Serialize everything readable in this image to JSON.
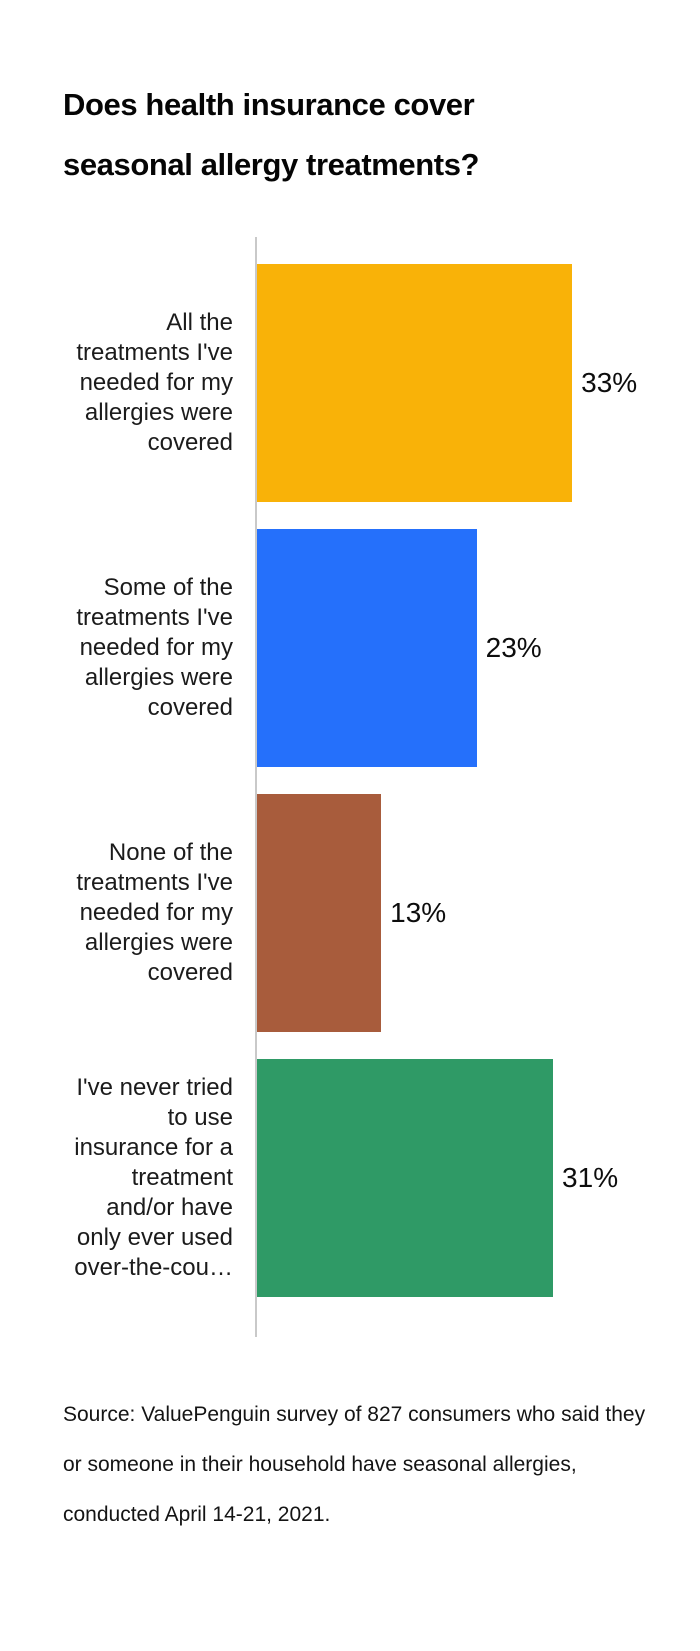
{
  "chart_data": {
    "type": "bar",
    "orientation": "horizontal",
    "title": "Does health insurance cover seasonal allergy treatments?",
    "title_display": "Does health insurance cover\nseasonal allergy treatments?",
    "categories": [
      "All the treatments I've needed for my allergies were covered",
      "Some of the treatments I've needed for my allergies were covered",
      "None of the treatments I've needed for my allergies were covered",
      "I've never tried to use insurance for a treatment and/or have only ever used over-the-cou…"
    ],
    "categories_display": [
      "All the\ntreatments I've\nneeded for my\nallergies were\ncovered",
      "Some of the\ntreatments I've\nneeded for my\nallergies were\ncovered",
      "None of the\ntreatments I've\nneeded for my\nallergies were\ncovered",
      "I've never tried\nto use\ninsurance for a\ntreatment\nand/or have\nonly ever used\nover-the-cou…"
    ],
    "values": [
      33,
      23,
      13,
      31
    ],
    "value_labels": [
      "33%",
      "23%",
      "13%",
      "31%"
    ],
    "bar_colors": [
      "#F9B208",
      "#2570FB",
      "#A85C3C",
      "#2F9A66"
    ],
    "axis_color": "#C9C9C9",
    "xlim": [
      0,
      33
    ],
    "legend": "none",
    "grid": "off",
    "xlabel": "",
    "ylabel": "",
    "source": "Source: ValuePenguin survey of 827 consumers who said they\nor someone in their household have seasonal allergies,\nconducted April 14-21, 2021."
  }
}
